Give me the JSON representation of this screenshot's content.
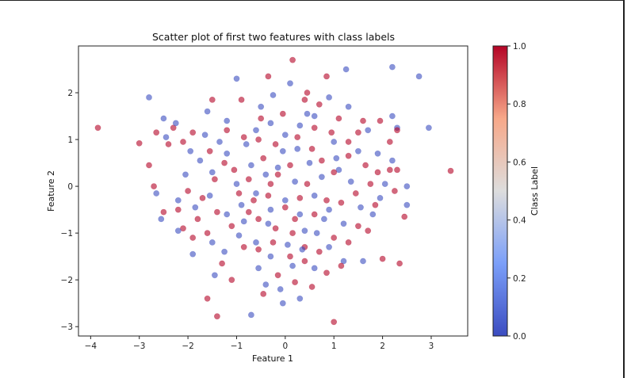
{
  "chart_data": {
    "type": "scatter",
    "title": "Scatter plot of first two features with class labels",
    "xlabel": "Feature 1",
    "ylabel": "Feature 2",
    "xlim": [
      -4.25,
      3.75
    ],
    "ylim": [
      -3.2,
      3.0
    ],
    "xticks": [
      -4,
      -3,
      -2,
      -1,
      0,
      1,
      2,
      3
    ],
    "yticks": [
      -3,
      -2,
      -1,
      0,
      1,
      2
    ],
    "colormap": "coolwarm",
    "alpha": 0.6,
    "colorbar": {
      "label": "Class Label",
      "range": [
        0.0,
        1.0
      ],
      "ticks": [
        "0.0",
        "0.2",
        "0.4",
        "0.6",
        "0.8",
        "1.0"
      ]
    },
    "series": [
      {
        "name": "",
        "color": "#3b4cc0",
        "points": [
          [
            -2.8,
            1.9
          ],
          [
            -1.0,
            2.3
          ],
          [
            2.2,
            2.55
          ],
          [
            2.75,
            2.35
          ],
          [
            1.25,
            2.5
          ],
          [
            -2.5,
            1.45
          ],
          [
            -2.25,
            1.35
          ],
          [
            -1.6,
            1.6
          ],
          [
            -1.2,
            1.4
          ],
          [
            -0.5,
            1.7
          ],
          [
            0.1,
            2.2
          ],
          [
            0.9,
            1.9
          ],
          [
            1.3,
            1.7
          ],
          [
            2.2,
            1.5
          ],
          [
            2.3,
            1.25
          ],
          [
            2.95,
            1.25
          ],
          [
            -2.45,
            1.05
          ],
          [
            -1.95,
            0.75
          ],
          [
            -1.75,
            0.55
          ],
          [
            -1.5,
            0.3
          ],
          [
            -1.2,
            0.7
          ],
          [
            -0.8,
            0.9
          ],
          [
            -0.6,
            1.2
          ],
          [
            -0.3,
            1.35
          ],
          [
            0.0,
            1.1
          ],
          [
            0.3,
            1.3
          ],
          [
            0.6,
            1.5
          ],
          [
            1.0,
            0.95
          ],
          [
            1.5,
            0.75
          ],
          [
            1.9,
            0.7
          ],
          [
            2.2,
            0.55
          ],
          [
            2.5,
            0.0
          ],
          [
            2.5,
            -0.4
          ],
          [
            -2.65,
            -0.15
          ],
          [
            -2.2,
            -0.3
          ],
          [
            -1.85,
            -0.45
          ],
          [
            -1.55,
            -0.2
          ],
          [
            -1.2,
            -0.6
          ],
          [
            -0.9,
            -0.4
          ],
          [
            -0.6,
            -0.15
          ],
          [
            -0.3,
            -0.5
          ],
          [
            0.0,
            -0.3
          ],
          [
            0.3,
            -0.6
          ],
          [
            0.6,
            -0.2
          ],
          [
            0.9,
            -0.5
          ],
          [
            1.2,
            -0.8
          ],
          [
            1.55,
            -0.45
          ],
          [
            1.8,
            -0.6
          ],
          [
            2.05,
            0.05
          ],
          [
            -2.55,
            -0.7
          ],
          [
            -2.2,
            -0.95
          ],
          [
            -1.9,
            -1.45
          ],
          [
            -1.5,
            -1.2
          ],
          [
            -1.25,
            -1.4
          ],
          [
            -0.95,
            -1.05
          ],
          [
            -0.6,
            -1.2
          ],
          [
            -0.3,
            -1.5
          ],
          [
            0.05,
            -1.25
          ],
          [
            0.35,
            -1.35
          ],
          [
            0.65,
            -1.0
          ],
          [
            0.9,
            -1.3
          ],
          [
            1.2,
            -1.6
          ],
          [
            1.6,
            -1.6
          ],
          [
            -1.45,
            -1.9
          ],
          [
            -0.4,
            -2.1
          ],
          [
            -0.1,
            -2.2
          ],
          [
            0.3,
            -2.4
          ],
          [
            0.6,
            -1.75
          ],
          [
            -0.05,
            -2.5
          ],
          [
            -0.7,
            -2.75
          ],
          [
            -0.25,
            1.95
          ],
          [
            0.45,
            1.55
          ],
          [
            -0.15,
            0.4
          ],
          [
            0.2,
            0.1
          ],
          [
            -0.4,
            0.25
          ],
          [
            0.5,
            0.5
          ],
          [
            0.75,
            0.2
          ],
          [
            -0.7,
            0.45
          ],
          [
            1.1,
            0.35
          ],
          [
            1.35,
            0.1
          ],
          [
            -1.0,
            0.05
          ],
          [
            -0.05,
            0.75
          ],
          [
            0.25,
            0.8
          ],
          [
            -0.35,
            -0.8
          ],
          [
            0.4,
            -0.95
          ],
          [
            0.8,
            -0.7
          ],
          [
            -0.85,
            -0.75
          ],
          [
            1.05,
            0.6
          ],
          [
            -1.35,
            0.95
          ],
          [
            1.7,
            1.2
          ],
          [
            -2.05,
            0.25
          ],
          [
            1.95,
            -0.25
          ],
          [
            -1.65,
            1.1
          ],
          [
            0.15,
            -1.7
          ],
          [
            -0.55,
            -1.75
          ]
        ]
      },
      {
        "name": "",
        "color": "#b40426",
        "points": [
          [
            -3.85,
            1.25
          ],
          [
            -3.0,
            0.92
          ],
          [
            -2.8,
            0.45
          ],
          [
            -2.7,
            0.0
          ],
          [
            -2.65,
            1.15
          ],
          [
            -2.4,
            0.9
          ],
          [
            -2.3,
            1.25
          ],
          [
            -2.1,
            0.95
          ],
          [
            -2.0,
            -0.1
          ],
          [
            -2.1,
            -0.9
          ],
          [
            -1.8,
            -0.7
          ],
          [
            -1.5,
            1.85
          ],
          [
            -1.3,
            -1.65
          ],
          [
            -1.4,
            -2.78
          ],
          [
            -1.6,
            -2.4
          ],
          [
            -0.35,
            2.35
          ],
          [
            0.15,
            2.7
          ],
          [
            0.85,
            2.35
          ],
          [
            0.4,
            1.85
          ],
          [
            -0.9,
            1.85
          ],
          [
            -0.5,
            1.45
          ],
          [
            1.6,
            1.4
          ],
          [
            1.95,
            1.4
          ],
          [
            2.3,
            1.2
          ],
          [
            2.15,
            0.95
          ],
          [
            2.3,
            0.35
          ],
          [
            2.25,
            -0.1
          ],
          [
            1.85,
            -0.4
          ],
          [
            1.5,
            -0.85
          ],
          [
            2.0,
            -1.55
          ],
          [
            2.35,
            -1.65
          ],
          [
            2.45,
            -0.65
          ],
          [
            1.0,
            -2.9
          ],
          [
            0.4,
            -1.3
          ],
          [
            0.15,
            -1.0
          ],
          [
            -0.2,
            -0.9
          ],
          [
            -0.55,
            -0.7
          ],
          [
            -1.1,
            -0.85
          ],
          [
            -1.4,
            -0.55
          ],
          [
            -1.7,
            -0.25
          ],
          [
            -2.2,
            -0.5
          ],
          [
            -1.05,
            0.35
          ],
          [
            -0.75,
            0.15
          ],
          [
            -0.45,
            0.6
          ],
          [
            -0.15,
            0.25
          ],
          [
            0.1,
            0.45
          ],
          [
            0.45,
            0.05
          ],
          [
            0.75,
            0.55
          ],
          [
            1.0,
            0.3
          ],
          [
            1.3,
            0.65
          ],
          [
            1.65,
            0.45
          ],
          [
            1.9,
            0.3
          ],
          [
            2.15,
            0.35
          ],
          [
            -1.2,
            1.2
          ],
          [
            -0.85,
            1.05
          ],
          [
            -0.55,
            1.0
          ],
          [
            -0.2,
            0.9
          ],
          [
            0.25,
            1.05
          ],
          [
            0.6,
            1.25
          ],
          [
            0.95,
            1.15
          ],
          [
            1.3,
            0.95
          ],
          [
            -1.9,
            1.15
          ],
          [
            -1.55,
            0.75
          ],
          [
            -1.25,
            0.5
          ],
          [
            -0.95,
            -0.15
          ],
          [
            -0.65,
            -0.3
          ],
          [
            -0.35,
            -0.2
          ],
          [
            0.0,
            -0.45
          ],
          [
            0.3,
            -0.25
          ],
          [
            0.6,
            -0.6
          ],
          [
            0.85,
            -0.3
          ],
          [
            1.15,
            -0.35
          ],
          [
            1.45,
            -0.15
          ],
          [
            1.7,
            -0.95
          ],
          [
            1.3,
            -1.2
          ],
          [
            1.0,
            -1.1
          ],
          [
            0.7,
            -1.4
          ],
          [
            0.4,
            -1.6
          ],
          [
            0.1,
            -1.5
          ],
          [
            -0.25,
            -1.2
          ],
          [
            -0.55,
            -1.35
          ],
          [
            -0.85,
            -1.3
          ],
          [
            -1.6,
            -1.0
          ],
          [
            -1.9,
            -1.1
          ],
          [
            -1.1,
            -2.0
          ],
          [
            -0.15,
            -1.9
          ],
          [
            0.2,
            -2.05
          ],
          [
            0.55,
            -2.15
          ],
          [
            0.85,
            -1.85
          ],
          [
            1.15,
            -1.7
          ],
          [
            -0.45,
            -2.3
          ],
          [
            0.45,
            2.0
          ],
          [
            -0.05,
            1.55
          ],
          [
            0.7,
            1.75
          ],
          [
            1.1,
            1.45
          ],
          [
            1.5,
            1.15
          ],
          [
            -1.45,
            0.15
          ],
          [
            1.75,
            0.05
          ],
          [
            -2.5,
            -0.55
          ],
          [
            3.4,
            0.33
          ],
          [
            -0.75,
            -0.55
          ],
          [
            0.55,
            0.8
          ],
          [
            -0.3,
            0.05
          ],
          [
            0.2,
            -0.7
          ]
        ]
      }
    ]
  }
}
